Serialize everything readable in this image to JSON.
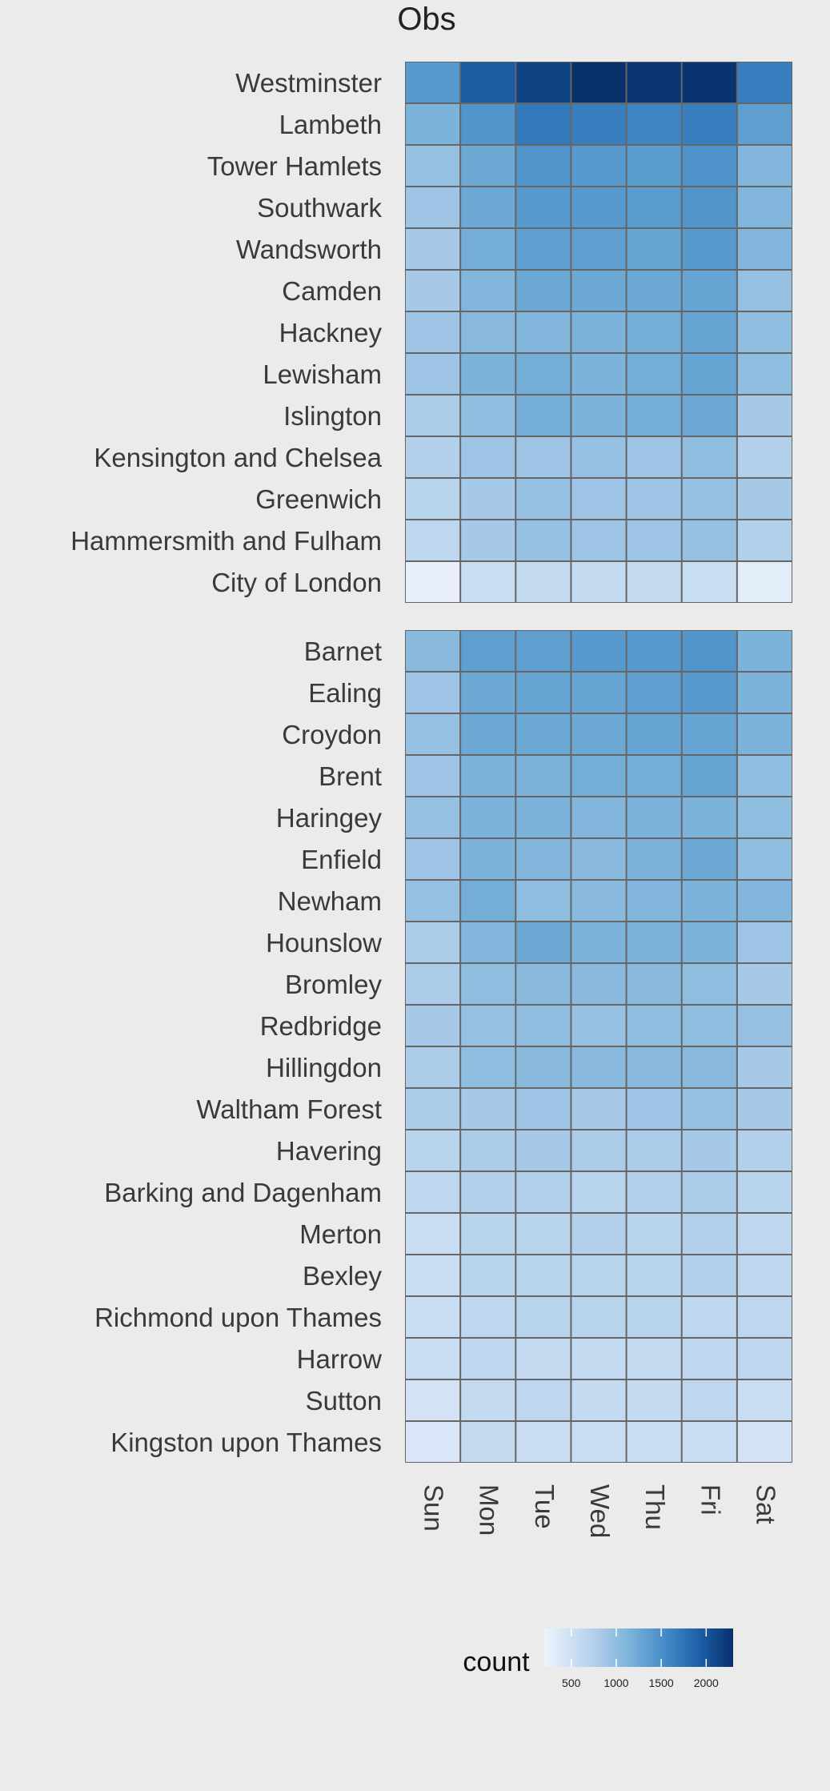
{
  "chart_data": {
    "type": "heatmap",
    "title": "Obs",
    "xlabel": "",
    "ylabel": "",
    "x": [
      "Sun",
      "Mon",
      "Tue",
      "Wed",
      "Thu",
      "Fri",
      "Sat"
    ],
    "color_scale": {
      "low": "#eef3fd",
      "high": "#08306b",
      "domain": [
        200,
        2300
      ]
    },
    "legend": {
      "title": "count",
      "ticks": [
        500,
        1000,
        1500,
        2000
      ],
      "placement": "bottom-right"
    },
    "grid": true,
    "panels": [
      {
        "rows": [
          {
            "label": "Westminster",
            "values": [
              1400,
              1950,
              2150,
              2300,
              2250,
              2270,
              1650
            ]
          },
          {
            "label": "Lambeth",
            "values": [
              1150,
              1450,
              1700,
              1650,
              1600,
              1650,
              1350
            ]
          },
          {
            "label": "Tower Hamlets",
            "values": [
              950,
              1250,
              1450,
              1400,
              1380,
              1480,
              1100
            ]
          },
          {
            "label": "Southwark",
            "values": [
              900,
              1250,
              1400,
              1400,
              1380,
              1450,
              1100
            ]
          },
          {
            "label": "Wandsworth",
            "values": [
              850,
              1200,
              1350,
              1350,
              1300,
              1400,
              1100
            ]
          },
          {
            "label": "Camden",
            "values": [
              850,
              1100,
              1250,
              1250,
              1250,
              1300,
              950
            ]
          },
          {
            "label": "Hackney",
            "values": [
              900,
              1050,
              1100,
              1150,
              1200,
              1300,
              1000
            ]
          },
          {
            "label": "Lewisham",
            "values": [
              900,
              1150,
              1200,
              1150,
              1200,
              1300,
              1000
            ]
          },
          {
            "label": "Islington",
            "values": [
              800,
              1000,
              1200,
              1150,
              1200,
              1250,
              850
            ]
          },
          {
            "label": "Kensington and Chelsea",
            "values": [
              750,
              900,
              900,
              950,
              900,
              1000,
              750
            ]
          },
          {
            "label": "Greenwich",
            "values": [
              700,
              850,
              950,
              900,
              900,
              950,
              850
            ]
          },
          {
            "label": "Hammersmith and Fulham",
            "values": [
              650,
              850,
              950,
              900,
              900,
              950,
              750
            ]
          },
          {
            "label": "City of London",
            "values": [
              250,
              550,
              600,
              600,
              600,
              550,
              300
            ]
          }
        ]
      },
      {
        "rows": [
          {
            "label": "Barnet",
            "values": [
              1050,
              1350,
              1350,
              1400,
              1400,
              1450,
              1150
            ]
          },
          {
            "label": "Ealing",
            "values": [
              900,
              1250,
              1300,
              1300,
              1350,
              1400,
              1150
            ]
          },
          {
            "label": "Croydon",
            "values": [
              950,
              1250,
              1250,
              1250,
              1300,
              1300,
              1150
            ]
          },
          {
            "label": "Brent",
            "values": [
              900,
              1150,
              1150,
              1200,
              1200,
              1300,
              1000
            ]
          },
          {
            "label": "Haringey",
            "values": [
              950,
              1150,
              1150,
              1100,
              1150,
              1150,
              1000
            ]
          },
          {
            "label": "Enfield",
            "values": [
              900,
              1150,
              1100,
              1050,
              1150,
              1250,
              1000
            ]
          },
          {
            "label": "Newham",
            "values": [
              950,
              1200,
              1000,
              1050,
              1100,
              1150,
              1100
            ]
          },
          {
            "label": "Hounslow",
            "values": [
              800,
              1100,
              1250,
              1150,
              1150,
              1150,
              900
            ]
          },
          {
            "label": "Bromley",
            "values": [
              800,
              1000,
              1050,
              1050,
              1050,
              1000,
              850
            ]
          },
          {
            "label": "Redbridge",
            "values": [
              850,
              950,
              1000,
              950,
              1000,
              1000,
              950
            ]
          },
          {
            "label": "Hillingdon",
            "values": [
              800,
              1000,
              1050,
              1050,
              1050,
              1050,
              850
            ]
          },
          {
            "label": "Waltham Forest",
            "values": [
              800,
              850,
              900,
              850,
              900,
              950,
              850
            ]
          },
          {
            "label": "Havering",
            "values": [
              700,
              800,
              850,
              800,
              800,
              850,
              750
            ]
          },
          {
            "label": "Barking and Dagenham",
            "values": [
              650,
              750,
              750,
              700,
              750,
              800,
              700
            ]
          },
          {
            "label": "Merton",
            "values": [
              550,
              700,
              700,
              750,
              700,
              750,
              650
            ]
          },
          {
            "label": "Bexley",
            "values": [
              550,
              700,
              700,
              700,
              700,
              750,
              650
            ]
          },
          {
            "label": "Richmond upon Thames",
            "values": [
              550,
              650,
              700,
              700,
              700,
              650,
              650
            ]
          },
          {
            "label": "Harrow",
            "values": [
              550,
              650,
              600,
              600,
              600,
              650,
              650
            ]
          },
          {
            "label": "Sutton",
            "values": [
              450,
              600,
              650,
              600,
              600,
              650,
              550
            ]
          },
          {
            "label": "Kingston upon Thames",
            "values": [
              400,
              600,
              550,
              550,
              550,
              550,
              450
            ]
          }
        ]
      }
    ]
  }
}
